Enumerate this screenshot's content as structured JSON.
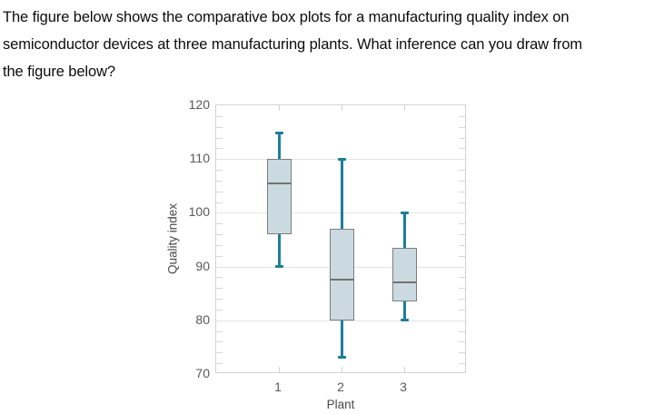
{
  "question": {
    "lines": [
      "The figure below shows the comparative box plots for a manufacturing quality index on",
      "semiconductor devices at three manufacturing plants. What inference can you draw from",
      "the figure below?"
    ]
  },
  "chart_data": {
    "type": "boxplot",
    "title": "",
    "xlabel": "Plant",
    "ylabel": "Quality index",
    "categories": [
      "1",
      "2",
      "3"
    ],
    "ylim": [
      70,
      120
    ],
    "y_major_ticks": [
      70,
      80,
      90,
      100,
      110,
      120
    ],
    "y_minor_step": 2,
    "grid": "horizontal-major-only",
    "legend": "none",
    "series": [
      {
        "name": "Plant 1",
        "min": 90,
        "q1": 96,
        "median": 105.5,
        "q3": 110,
        "max": 115
      },
      {
        "name": "Plant 2",
        "min": 73,
        "q1": 80,
        "median": 87.5,
        "q3": 97,
        "max": 110
      },
      {
        "name": "Plant 3",
        "min": 80,
        "q1": 83.5,
        "median": 87,
        "q3": 93.5,
        "max": 100
      }
    ],
    "colors": {
      "box_fill": "#cbdae1",
      "box_border": "#7e7e7e",
      "median": "#737373",
      "whisker": "#1a7f9a",
      "gridline": "#e4e4e4",
      "axis_border": "#d2d2d2",
      "minor_tick": "#d8d8d8",
      "tick_label": "#595959",
      "axis_title": "#4a4a4a"
    }
  }
}
